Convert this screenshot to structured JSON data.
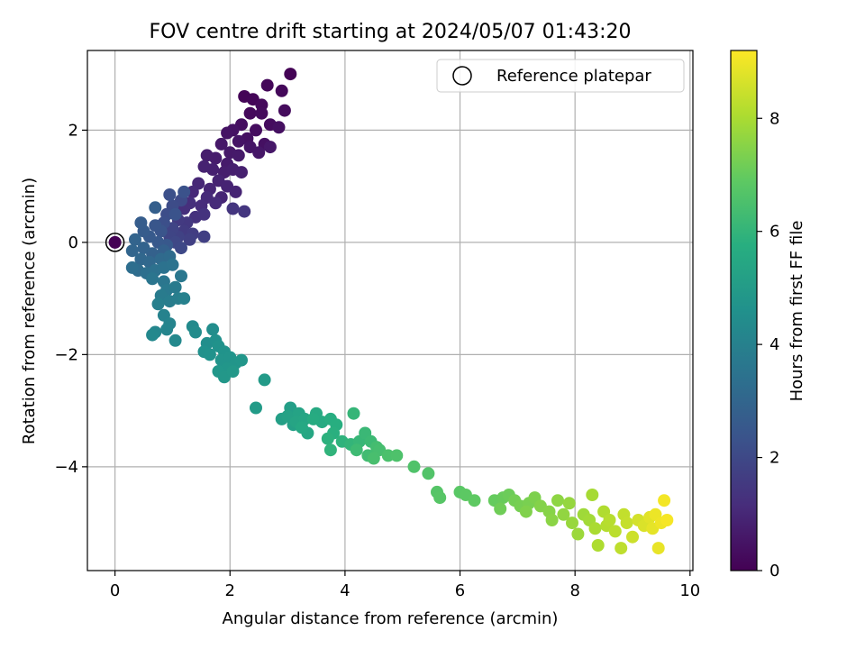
{
  "chart_data": {
    "type": "scatter",
    "title": "FOV centre drift starting at 2024/05/07 01:43:20",
    "xlabel": "Angular distance from reference (arcmin)",
    "ylabel": "Rotation from reference (arcmin)",
    "xlim": [
      -0.48,
      10.05
    ],
    "ylim": [
      -5.85,
      3.42
    ],
    "xticks": [
      0,
      2,
      4,
      6,
      8,
      10
    ],
    "yticks": [
      -4,
      -2,
      0,
      2
    ],
    "xtick_labels": [
      "0",
      "2",
      "4",
      "6",
      "8",
      "10"
    ],
    "ytick_labels": [
      "−4",
      "−2",
      "0",
      "2"
    ],
    "grid": true,
    "legend": {
      "placement": "top-right",
      "entries": [
        "Reference platepar"
      ]
    },
    "colorbar": {
      "label": "Hours from first FF file",
      "range": [
        0,
        9.2
      ],
      "ticks": [
        0,
        2,
        4,
        6,
        8
      ],
      "tick_labels": [
        "0",
        "2",
        "4",
        "6",
        "8"
      ],
      "colormap": "viridis"
    },
    "colors": {
      "reference_marker_edge": "#000000",
      "grid": "#b0b0b0"
    },
    "reference_point": {
      "x": 0,
      "y": 0,
      "hours": 0
    },
    "series": [
      {
        "point_columns": [
          "x",
          "y",
          "hours"
        ],
        "points": [
          [
            3.05,
            3.0,
            0.05
          ],
          [
            2.25,
            2.6,
            0.1
          ],
          [
            2.4,
            2.55,
            0.12
          ],
          [
            2.65,
            2.8,
            0.15
          ],
          [
            2.9,
            2.7,
            0.18
          ],
          [
            2.55,
            2.45,
            0.2
          ],
          [
            2.35,
            2.3,
            0.22
          ],
          [
            2.55,
            2.3,
            0.25
          ],
          [
            2.95,
            2.35,
            0.28
          ],
          [
            2.7,
            2.1,
            0.3
          ],
          [
            2.45,
            2.0,
            0.32
          ],
          [
            2.2,
            2.1,
            0.35
          ],
          [
            2.85,
            2.05,
            0.38
          ],
          [
            2.6,
            1.75,
            0.4
          ],
          [
            2.3,
            1.85,
            0.42
          ],
          [
            2.05,
            2.0,
            0.45
          ],
          [
            1.95,
            1.95,
            0.48
          ],
          [
            2.15,
            1.8,
            0.5
          ],
          [
            2.35,
            1.7,
            0.52
          ],
          [
            2.5,
            1.6,
            0.55
          ],
          [
            2.7,
            1.7,
            0.58
          ],
          [
            1.85,
            1.75,
            0.6
          ],
          [
            2.0,
            1.6,
            0.62
          ],
          [
            2.15,
            1.55,
            0.65
          ],
          [
            1.95,
            1.4,
            0.68
          ],
          [
            1.75,
            1.5,
            0.7
          ],
          [
            1.6,
            1.55,
            0.72
          ],
          [
            1.9,
            1.25,
            0.75
          ],
          [
            2.05,
            1.3,
            0.78
          ],
          [
            2.2,
            1.25,
            0.8
          ],
          [
            1.7,
            1.3,
            0.82
          ],
          [
            1.55,
            1.35,
            0.85
          ],
          [
            1.8,
            1.1,
            0.88
          ],
          [
            1.95,
            1.0,
            0.9
          ],
          [
            2.1,
            0.9,
            0.92
          ],
          [
            1.85,
            0.8,
            0.95
          ],
          [
            1.65,
            0.95,
            0.98
          ],
          [
            1.45,
            1.05,
            1.0
          ],
          [
            1.35,
            0.9,
            1.05
          ],
          [
            1.6,
            0.8,
            1.1
          ],
          [
            1.75,
            0.7,
            1.12
          ],
          [
            1.5,
            0.65,
            1.15
          ],
          [
            1.3,
            0.7,
            1.2
          ],
          [
            1.2,
            0.6,
            1.25
          ],
          [
            1.4,
            0.45,
            1.3
          ],
          [
            1.55,
            0.5,
            1.35
          ],
          [
            2.05,
            0.6,
            1.4
          ],
          [
            2.25,
            0.55,
            1.42
          ],
          [
            1.25,
            0.35,
            1.5
          ],
          [
            1.1,
            0.4,
            1.55
          ],
          [
            1.2,
            0.2,
            1.6
          ],
          [
            1.35,
            0.15,
            1.65
          ],
          [
            1.55,
            0.1,
            1.7
          ],
          [
            1.3,
            0.05,
            1.75
          ],
          [
            1.1,
            0.1,
            1.8
          ],
          [
            1.0,
            0.25,
            1.85
          ],
          [
            0.95,
            0.1,
            1.9
          ],
          [
            1.05,
            0.0,
            1.95
          ],
          [
            1.15,
            -0.1,
            2.0
          ],
          [
            1.15,
            0.75,
            2.05
          ],
          [
            1.0,
            0.65,
            2.1
          ],
          [
            0.9,
            0.5,
            2.15
          ],
          [
            0.85,
            0.35,
            2.2
          ],
          [
            0.95,
            0.85,
            2.25
          ],
          [
            1.2,
            0.9,
            2.3
          ],
          [
            1.05,
            0.5,
            2.35
          ],
          [
            0.8,
            0.2,
            2.4
          ],
          [
            0.7,
            0.3,
            2.45
          ],
          [
            0.9,
            -0.05,
            2.5
          ],
          [
            0.75,
            0.0,
            2.55
          ],
          [
            0.6,
            0.1,
            2.6
          ],
          [
            0.5,
            0.2,
            2.65
          ],
          [
            0.45,
            0.35,
            2.7
          ],
          [
            0.7,
            0.62,
            2.75
          ],
          [
            0.85,
            -0.15,
            2.8
          ],
          [
            0.65,
            -0.2,
            2.85
          ],
          [
            0.5,
            -0.1,
            2.9
          ],
          [
            0.35,
            0.05,
            2.95
          ],
          [
            0.3,
            -0.15,
            3.0
          ],
          [
            0.45,
            -0.3,
            3.05
          ],
          [
            0.6,
            -0.35,
            3.1
          ],
          [
            0.8,
            -0.3,
            3.15
          ],
          [
            0.95,
            -0.25,
            3.2
          ],
          [
            0.4,
            -0.5,
            3.25
          ],
          [
            0.3,
            -0.45,
            3.3
          ],
          [
            0.55,
            -0.55,
            3.35
          ],
          [
            0.7,
            -0.5,
            3.4
          ],
          [
            0.85,
            -0.45,
            3.45
          ],
          [
            1.0,
            -0.4,
            3.5
          ],
          [
            0.65,
            -0.65,
            3.55
          ],
          [
            0.85,
            -0.7,
            3.6
          ],
          [
            1.15,
            -0.6,
            3.65
          ],
          [
            0.9,
            -0.85,
            3.7
          ],
          [
            1.05,
            -0.8,
            3.75
          ],
          [
            0.8,
            -0.95,
            3.8
          ],
          [
            0.95,
            -1.05,
            3.85
          ],
          [
            1.1,
            -1.0,
            3.9
          ],
          [
            0.75,
            -1.1,
            3.95
          ],
          [
            1.2,
            -1.0,
            4.0
          ],
          [
            0.85,
            -1.3,
            4.05
          ],
          [
            0.95,
            -1.45,
            4.1
          ],
          [
            0.9,
            -1.55,
            4.15
          ],
          [
            0.7,
            -1.6,
            4.2
          ],
          [
            0.65,
            -1.65,
            4.25
          ],
          [
            1.05,
            -1.75,
            4.3
          ],
          [
            1.35,
            -1.5,
            4.35
          ],
          [
            1.4,
            -1.6,
            4.4
          ],
          [
            1.7,
            -1.55,
            4.45
          ],
          [
            1.6,
            -1.8,
            4.5
          ],
          [
            1.75,
            -1.75,
            4.55
          ],
          [
            1.55,
            -1.95,
            4.6
          ],
          [
            1.65,
            -2.0,
            4.62
          ],
          [
            1.8,
            -1.85,
            4.65
          ],
          [
            1.9,
            -1.95,
            4.68
          ],
          [
            1.85,
            -2.1,
            4.7
          ],
          [
            2.0,
            -2.05,
            4.72
          ],
          [
            2.1,
            -2.15,
            4.75
          ],
          [
            2.2,
            -2.1,
            4.78
          ],
          [
            1.95,
            -2.25,
            4.8
          ],
          [
            1.8,
            -2.3,
            4.82
          ],
          [
            1.9,
            -2.4,
            4.85
          ],
          [
            2.05,
            -2.3,
            4.88
          ],
          [
            2.6,
            -2.45,
            4.95
          ],
          [
            2.45,
            -2.95,
            5.0
          ],
          [
            3.05,
            -2.95,
            5.1
          ],
          [
            2.9,
            -3.15,
            5.15
          ],
          [
            3.1,
            -3.25,
            5.2
          ],
          [
            3.0,
            -3.1,
            5.25
          ],
          [
            3.2,
            -3.05,
            5.3
          ],
          [
            3.15,
            -3.2,
            5.35
          ],
          [
            3.3,
            -3.15,
            5.4
          ],
          [
            3.35,
            -3.4,
            5.45
          ],
          [
            3.25,
            -3.3,
            5.5
          ],
          [
            3.5,
            -3.05,
            5.55
          ],
          [
            3.6,
            -3.2,
            5.6
          ],
          [
            3.45,
            -3.15,
            5.65
          ],
          [
            3.75,
            -3.15,
            5.7
          ],
          [
            3.85,
            -3.25,
            5.75
          ],
          [
            3.8,
            -3.4,
            5.8
          ],
          [
            3.7,
            -3.5,
            5.85
          ],
          [
            3.95,
            -3.55,
            5.9
          ],
          [
            3.75,
            -3.7,
            5.95
          ],
          [
            4.1,
            -3.6,
            6.0
          ],
          [
            4.15,
            -3.05,
            6.05
          ],
          [
            4.25,
            -3.55,
            6.1
          ],
          [
            4.35,
            -3.4,
            6.15
          ],
          [
            4.45,
            -3.55,
            6.2
          ],
          [
            4.2,
            -3.7,
            6.25
          ],
          [
            4.4,
            -3.8,
            6.3
          ],
          [
            4.55,
            -3.65,
            6.35
          ],
          [
            4.6,
            -3.7,
            6.4
          ],
          [
            4.5,
            -3.85,
            6.45
          ],
          [
            4.75,
            -3.8,
            6.5
          ],
          [
            4.9,
            -3.8,
            6.55
          ],
          [
            5.2,
            -4.0,
            6.6
          ],
          [
            5.45,
            -4.12,
            6.65
          ],
          [
            5.6,
            -4.45,
            6.7
          ],
          [
            5.65,
            -4.55,
            6.75
          ],
          [
            6.0,
            -4.45,
            6.8
          ],
          [
            6.1,
            -4.5,
            6.85
          ],
          [
            6.25,
            -4.6,
            6.9
          ],
          [
            6.6,
            -4.6,
            7.0
          ],
          [
            6.75,
            -4.55,
            7.05
          ],
          [
            6.85,
            -4.5,
            7.1
          ],
          [
            6.7,
            -4.75,
            7.15
          ],
          [
            6.95,
            -4.6,
            7.2
          ],
          [
            7.05,
            -4.7,
            7.25
          ],
          [
            7.2,
            -4.65,
            7.3
          ],
          [
            7.3,
            -4.55,
            7.35
          ],
          [
            7.15,
            -4.8,
            7.4
          ],
          [
            7.4,
            -4.7,
            7.45
          ],
          [
            7.55,
            -4.8,
            7.5
          ],
          [
            7.6,
            -4.95,
            7.55
          ],
          [
            7.7,
            -4.6,
            7.6
          ],
          [
            7.8,
            -4.85,
            7.65
          ],
          [
            7.9,
            -4.65,
            7.7
          ],
          [
            7.95,
            -5.0,
            7.75
          ],
          [
            8.05,
            -5.2,
            7.8
          ],
          [
            8.15,
            -4.85,
            7.85
          ],
          [
            8.25,
            -4.95,
            7.9
          ],
          [
            8.3,
            -4.5,
            7.95
          ],
          [
            8.35,
            -5.1,
            8.0
          ],
          [
            8.4,
            -5.4,
            8.05
          ],
          [
            8.5,
            -4.8,
            8.1
          ],
          [
            8.55,
            -5.05,
            8.15
          ],
          [
            8.6,
            -4.95,
            8.2
          ],
          [
            8.7,
            -5.15,
            8.25
          ],
          [
            8.8,
            -5.45,
            8.3
          ],
          [
            8.85,
            -4.85,
            8.35
          ],
          [
            8.9,
            -5.0,
            8.4
          ],
          [
            9.0,
            -5.25,
            8.5
          ],
          [
            9.1,
            -4.95,
            8.6
          ],
          [
            9.2,
            -5.05,
            8.7
          ],
          [
            9.3,
            -4.9,
            8.8
          ],
          [
            9.35,
            -5.1,
            8.85
          ],
          [
            9.45,
            -5.45,
            8.9
          ],
          [
            9.4,
            -4.85,
            8.95
          ],
          [
            9.5,
            -5.0,
            9.0
          ],
          [
            9.55,
            -4.6,
            9.05
          ],
          [
            9.6,
            -4.95,
            9.1
          ]
        ]
      }
    ]
  }
}
